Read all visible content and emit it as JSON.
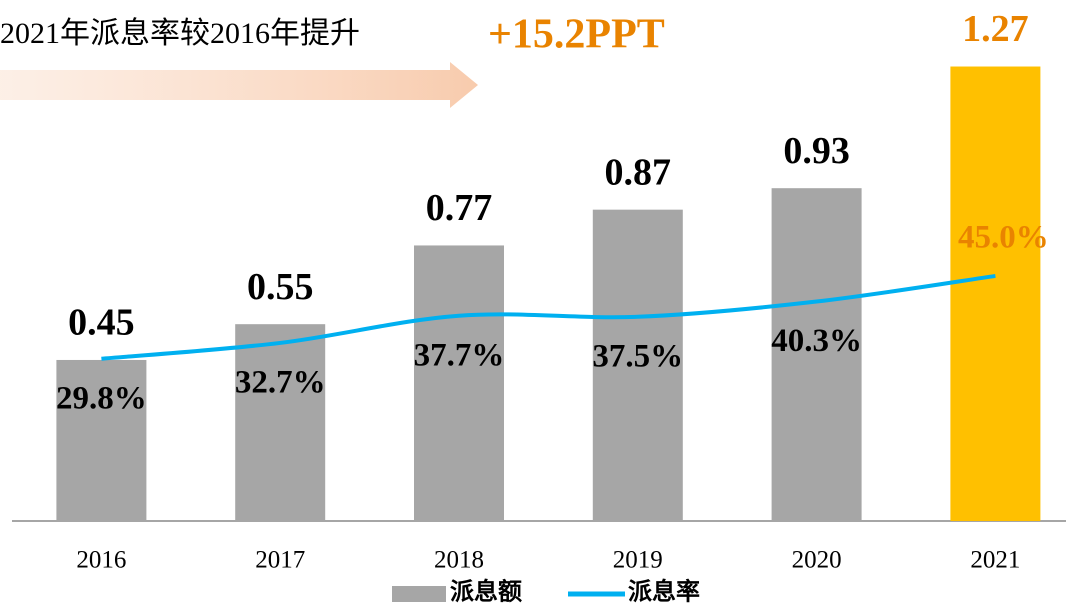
{
  "chart_data": {
    "type": "bar_line",
    "annotations": [
      "2021年派息率较2016年提升",
      "+15.2PPT"
    ],
    "categories": [
      "2016",
      "2017",
      "2018",
      "2019",
      "2020",
      "2021"
    ],
    "series": [
      {
        "name": "派息额",
        "type": "bar",
        "color": "#A6A6A6",
        "colors": [
          "#A6A6A6",
          "#A6A6A6",
          "#A6A6A6",
          "#A6A6A6",
          "#A6A6A6",
          "#FFC000"
        ],
        "values": [
          0.45,
          0.55,
          0.77,
          0.87,
          0.93,
          1.27
        ]
      },
      {
        "name": "派息率",
        "type": "line",
        "axis": "y2",
        "color": "#00B0F0",
        "values": [
          29.8,
          32.7,
          37.7,
          37.5,
          40.3,
          45.0
        ],
        "value_labels": [
          "29.8%",
          "32.7%",
          "37.7%",
          "37.5%",
          "40.3%",
          "45.0%"
        ]
      }
    ],
    "ylim": [
      0,
      1.4
    ],
    "y2lim": [
      0,
      92
    ],
    "grid": false
  }
}
